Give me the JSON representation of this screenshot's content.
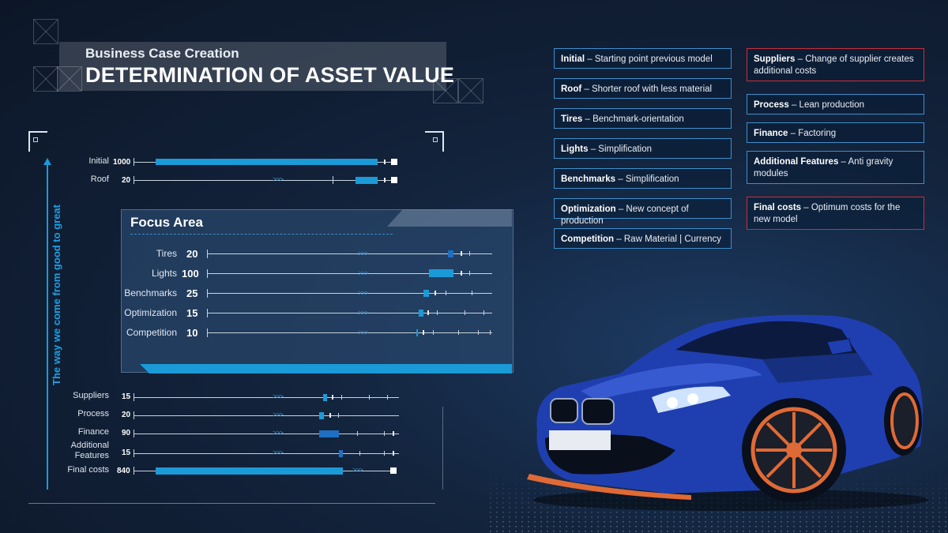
{
  "header": {
    "subtitle": "Business Case Creation",
    "title": "DETERMINATION OF ASSET VALUE"
  },
  "side_label": "The way we come from good to great",
  "top_rows": [
    {
      "label": "Initial",
      "value": "1000"
    },
    {
      "label": "Roof",
      "value": "20"
    }
  ],
  "focus": {
    "title": "Focus Area",
    "rows": [
      {
        "label": "Tires",
        "value": "20"
      },
      {
        "label": "Lights",
        "value": "100"
      },
      {
        "label": "Benchmarks",
        "value": "25"
      },
      {
        "label": "Optimization",
        "value": "15"
      },
      {
        "label": "Competition",
        "value": "10"
      }
    ]
  },
  "bottom_rows": [
    {
      "label": "Suppliers",
      "value": "15"
    },
    {
      "label": "Process",
      "value": "20"
    },
    {
      "label": "Finance",
      "value": "90"
    },
    {
      "label": "Additional Features",
      "value": "15"
    },
    {
      "label": "Final costs",
      "value": "840"
    }
  ],
  "arrows_glyph": ">>>",
  "info_left": [
    {
      "key": "Initial",
      "text": " – Starting point previous model"
    },
    {
      "key": "Roof",
      "text": " – Shorter roof with less material"
    },
    {
      "key": "Tires",
      "text": " – Benchmark-orientation"
    },
    {
      "key": "Lights",
      "text": " – Simplification"
    },
    {
      "key": "Benchmarks",
      "text": " – Simplification"
    },
    {
      "key": "Optimization",
      "text": " – New concept of production"
    },
    {
      "key": "Competition",
      "text": " – Raw Material |  Currency"
    }
  ],
  "info_right": [
    {
      "key": "Suppliers",
      "text": " – Change of supplier creates additional costs"
    },
    {
      "key": "Process",
      "text": " – Lean production"
    },
    {
      "key": "Finance",
      "text": " – Factoring"
    },
    {
      "key": "Additional Features",
      "text": " – Anti gravity modules"
    },
    {
      "key": "Final costs",
      "text": " – Optimum costs for the new model"
    }
  ],
  "colors": {
    "accent_blue": "#1b9ad8",
    "box_border": "#3d8fcc",
    "box_border_red": "#c8303a",
    "car_blue": "#1f3fb0",
    "wheel_orange": "#e06a36"
  }
}
